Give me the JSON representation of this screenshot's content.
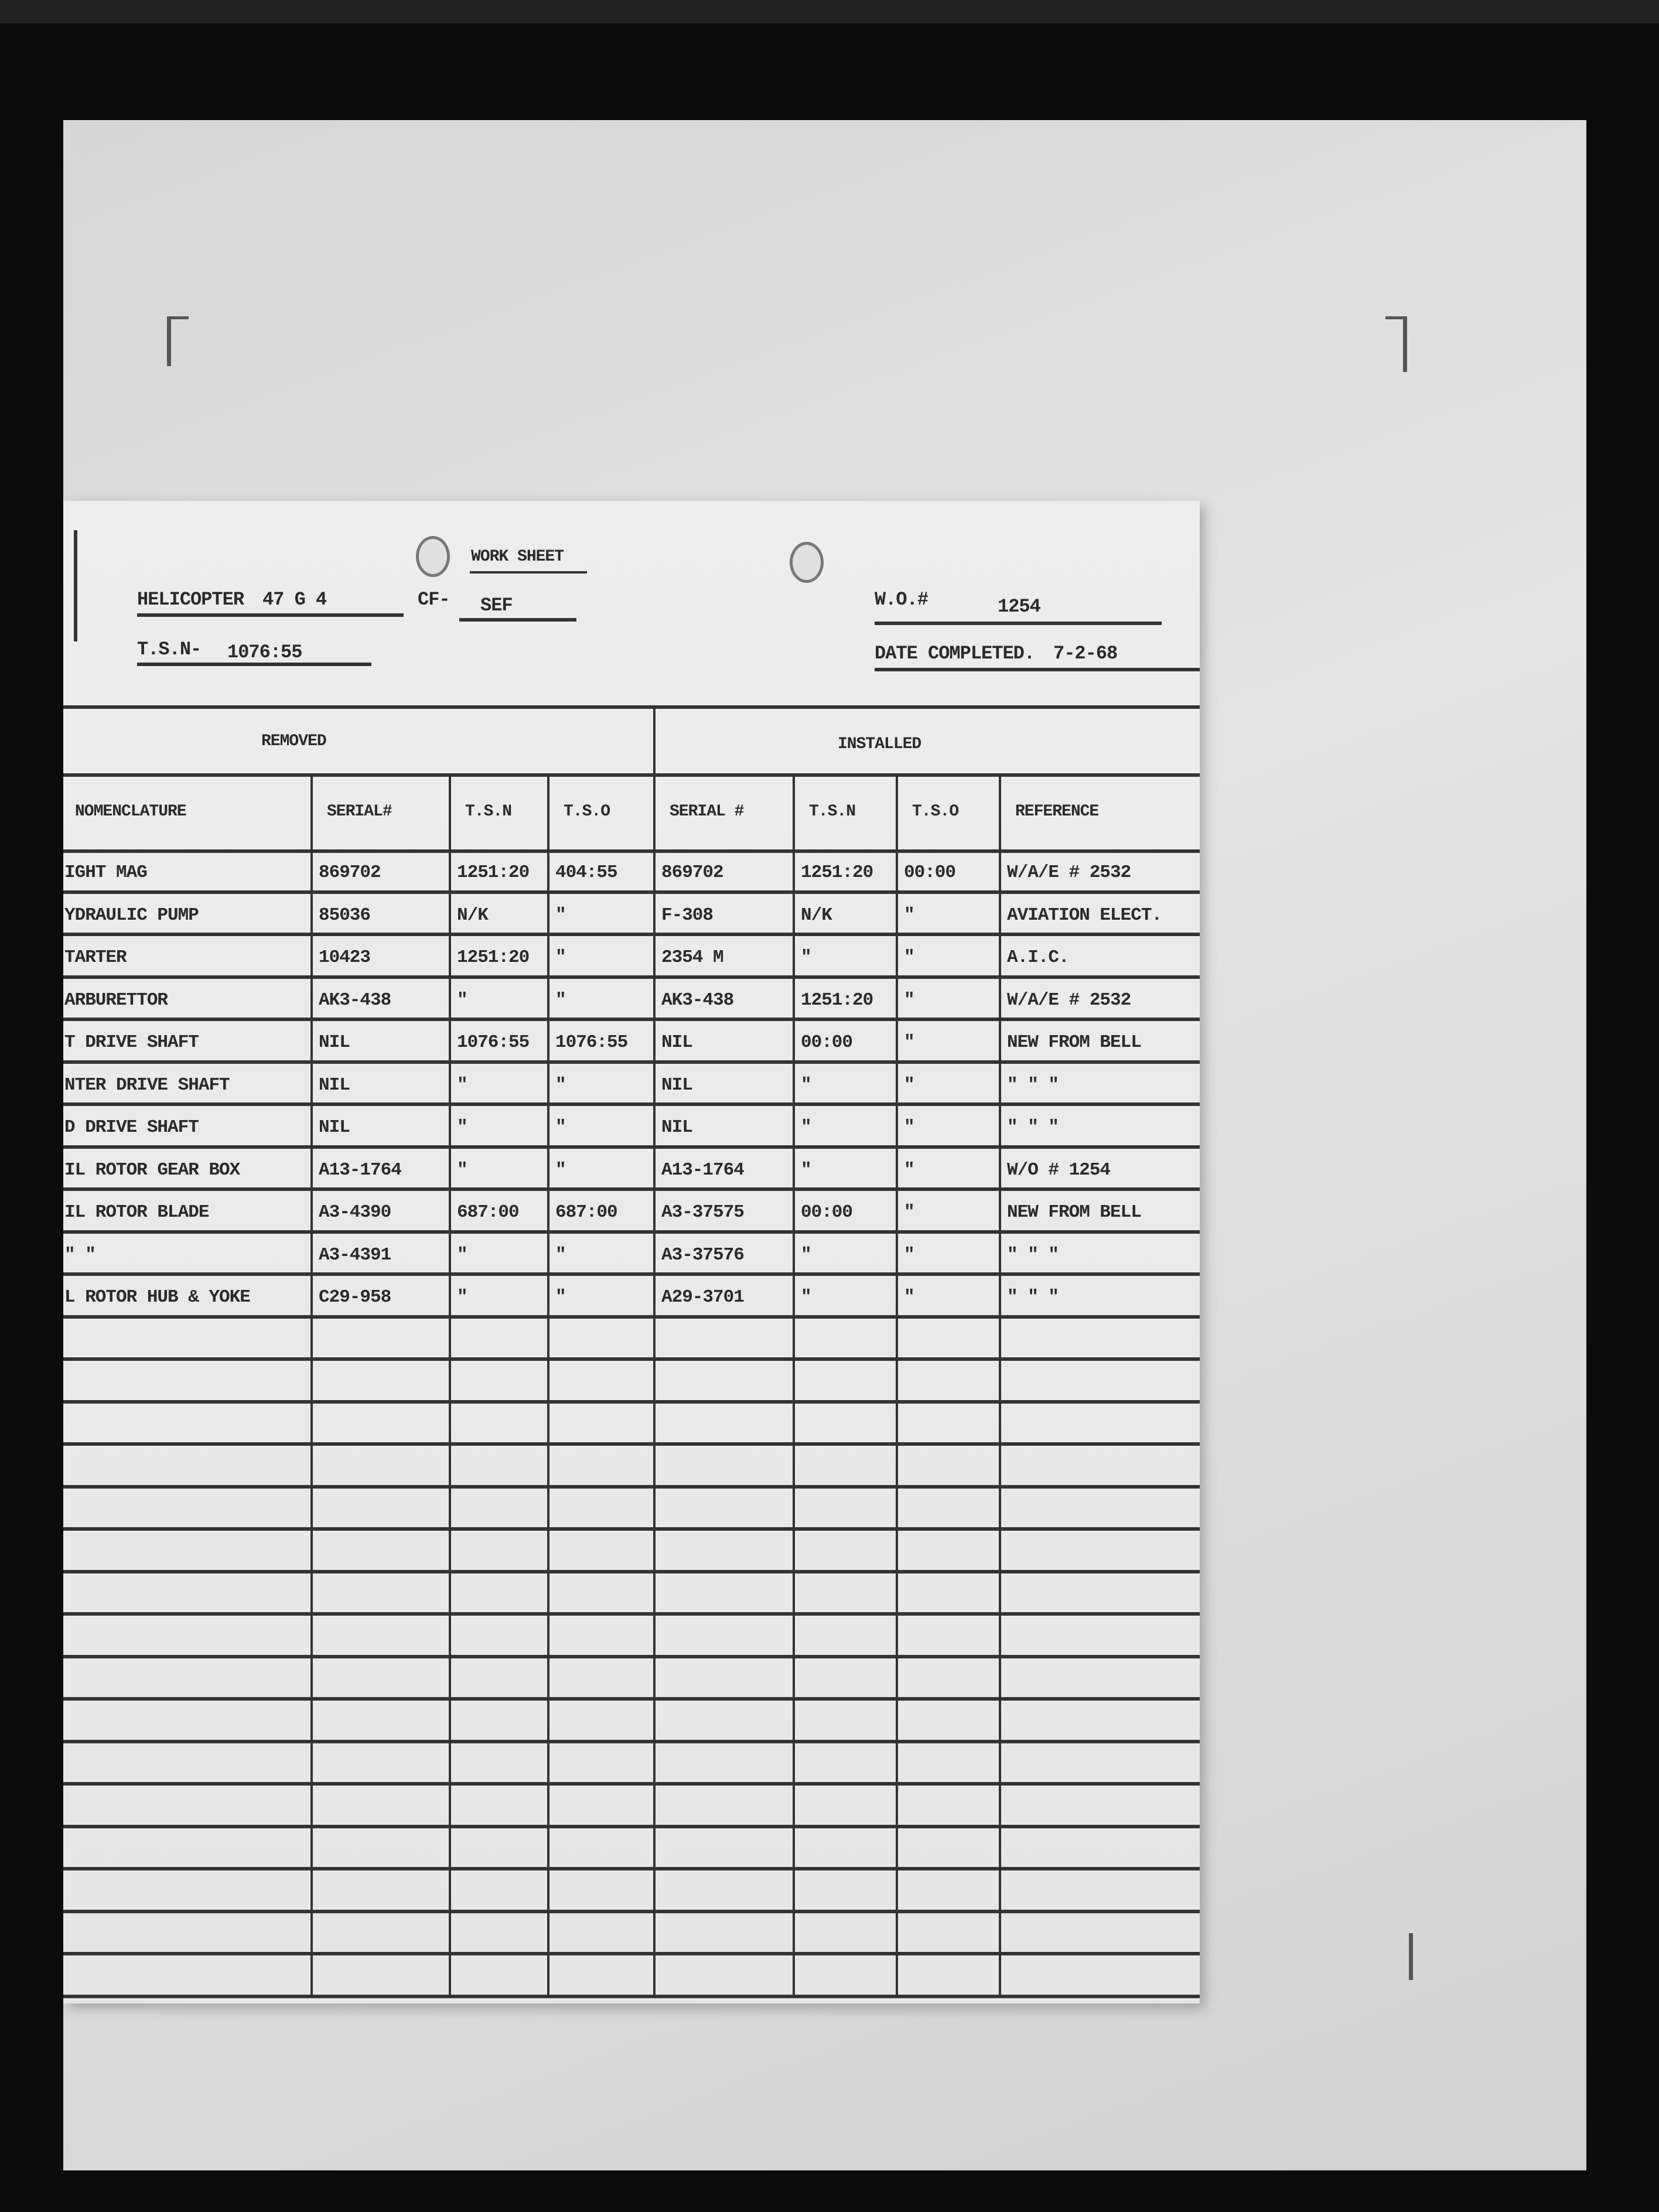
{
  "form": {
    "title": "WORK SHEET",
    "aircraft_label": "HELICOPTER",
    "aircraft_model": "47 G 4",
    "registration_label": "CF-",
    "registration": "SEF",
    "work_order_label": "W.O.#",
    "work_order": "1254",
    "tsn_label": "T.S.N-",
    "tsn": "1076:55",
    "date_completed_label": "DATE COMPLETED.",
    "date_completed": "7-2-68"
  },
  "table": {
    "group_headers": [
      "REMOVED",
      "INSTALLED"
    ],
    "columns": [
      "NOMENCLATURE",
      "SERIAL#",
      "T.S.N",
      "T.S.O",
      "SERIAL #",
      "T.S.N",
      "T.S.O",
      "REFERENCE"
    ],
    "rows": [
      [
        "IGHT MAG",
        "869702",
        "1251:20",
        "404:55",
        "869702",
        "1251:20",
        "00:00",
        "W/A/E # 2532"
      ],
      [
        "YDRAULIC PUMP",
        "85036",
        "N/K",
        "\"",
        "F-308",
        "N/K",
        "\"",
        "AVIATION ELECT."
      ],
      [
        "TARTER",
        "10423",
        "1251:20",
        "\"",
        "2354 M",
        "\"",
        "\"",
        "A.I.C."
      ],
      [
        "ARBURETTOR",
        "AK3-438",
        "\"",
        "\"",
        "AK3-438",
        "1251:20",
        "\"",
        "W/A/E # 2532"
      ],
      [
        "T DRIVE SHAFT",
        "NIL",
        "1076:55",
        "1076:55",
        "NIL",
        "00:00",
        "\"",
        "NEW FROM BELL"
      ],
      [
        "NTER DRIVE SHAFT",
        "NIL",
        "\"",
        "\"",
        "NIL",
        "\"",
        "\"",
        "\"   \"   \""
      ],
      [
        "D DRIVE SHAFT",
        "NIL",
        "\"",
        "\"",
        "NIL",
        "\"",
        "\"",
        "\"   \"   \""
      ],
      [
        "IL ROTOR GEAR BOX",
        "A13-1764",
        "\"",
        "\"",
        "A13-1764",
        "\"",
        "\"",
        "W/O # 1254"
      ],
      [
        "IL ROTOR BLADE",
        "A3-4390",
        "687:00",
        "687:00",
        "A3-37575",
        "00:00",
        "\"",
        "NEW FROM BELL"
      ],
      [
        "  \"   \"",
        "A3-4391",
        "\"",
        "\"",
        "A3-37576",
        "\"",
        "\"",
        "\"   \"   \""
      ],
      [
        "L ROTOR HUB & YOKE",
        "C29-958",
        "\"",
        "\"",
        "A29-3701",
        "\"",
        "\"",
        "\"   \"   \""
      ]
    ],
    "total_rows": 27
  }
}
